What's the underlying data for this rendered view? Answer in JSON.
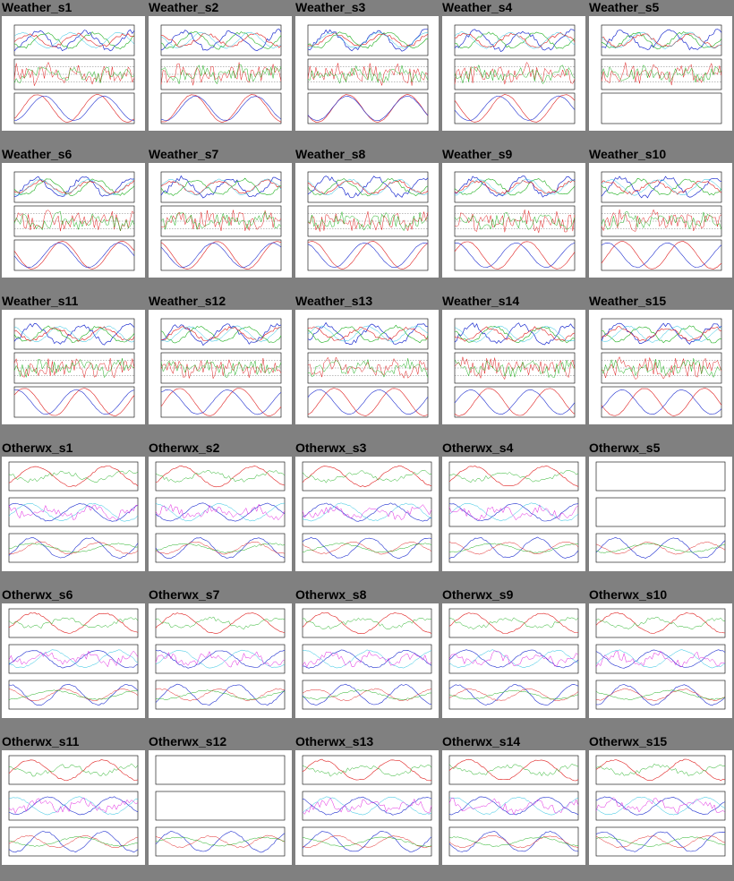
{
  "rows": [
    {
      "cells": [
        {
          "title": "Weather_s1",
          "kind": "weather"
        },
        {
          "title": "Weather_s2",
          "kind": "weather"
        },
        {
          "title": "Weather_s3",
          "kind": "weather"
        },
        {
          "title": "Weather_s4",
          "kind": "weather"
        },
        {
          "title": "Weather_s5",
          "kind": "weather-partial"
        }
      ]
    },
    {
      "cells": [
        {
          "title": "Weather_s6",
          "kind": "weather"
        },
        {
          "title": "Weather_s7",
          "kind": "weather"
        },
        {
          "title": "Weather_s8",
          "kind": "weather"
        },
        {
          "title": "Weather_s9",
          "kind": "weather"
        },
        {
          "title": "Weather_s10",
          "kind": "weather"
        }
      ]
    },
    {
      "cells": [
        {
          "title": "Weather_s11",
          "kind": "weather"
        },
        {
          "title": "Weather_s12",
          "kind": "weather"
        },
        {
          "title": "Weather_s13",
          "kind": "weather"
        },
        {
          "title": "Weather_s14",
          "kind": "weather"
        },
        {
          "title": "Weather_s15",
          "kind": "weather"
        }
      ]
    },
    {
      "cells": [
        {
          "title": "Otherwx_s1",
          "kind": "otherwx"
        },
        {
          "title": "Otherwx_s2",
          "kind": "otherwx"
        },
        {
          "title": "Otherwx_s3",
          "kind": "otherwx"
        },
        {
          "title": "Otherwx_s4",
          "kind": "otherwx"
        },
        {
          "title": "Otherwx_s5",
          "kind": "otherwx-empty"
        }
      ]
    },
    {
      "cells": [
        {
          "title": "Otherwx_s6",
          "kind": "otherwx"
        },
        {
          "title": "Otherwx_s7",
          "kind": "otherwx"
        },
        {
          "title": "Otherwx_s8",
          "kind": "otherwx"
        },
        {
          "title": "Otherwx_s9",
          "kind": "otherwx"
        },
        {
          "title": "Otherwx_s10",
          "kind": "otherwx"
        }
      ]
    },
    {
      "cells": [
        {
          "title": "Otherwx_s11",
          "kind": "otherwx"
        },
        {
          "title": "Otherwx_s12",
          "kind": "otherwx-empty"
        },
        {
          "title": "Otherwx_s13",
          "kind": "otherwx"
        },
        {
          "title": "Otherwx_s14",
          "kind": "otherwx"
        },
        {
          "title": "Otherwx_s15",
          "kind": "otherwx"
        }
      ]
    }
  ],
  "colors": {
    "background": "#808080",
    "panel": "#ffffff",
    "red": "#e02020",
    "green": "#20b020",
    "blue": "#2030d0",
    "cyan": "#20c0e0",
    "magenta": "#e020e0",
    "orange": "#e08020"
  }
}
